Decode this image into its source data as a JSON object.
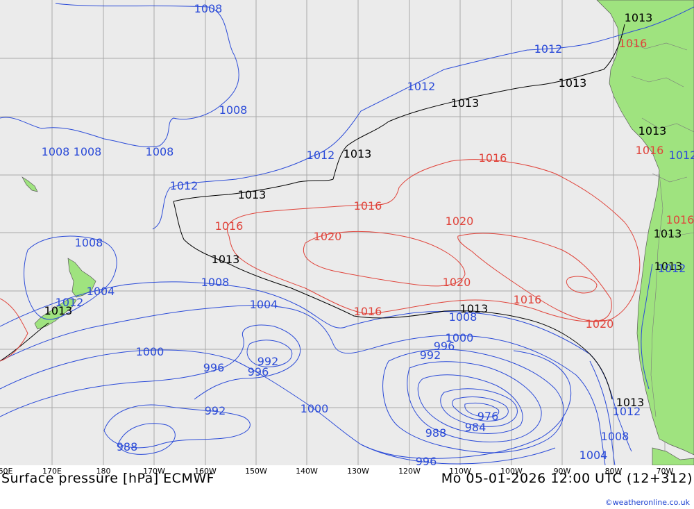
{
  "map": {
    "colors": {
      "ocean": "#ebebeb",
      "land": "#9fe37f",
      "grid": "#a8a8a8",
      "isobar_low": "#2b4bd8",
      "isobar_ref": "#000000",
      "isobar_high": "#e0433a",
      "border": "#7a7a7a"
    },
    "isobar_labels": [
      {
        "text": "1008",
        "color": "low"
      },
      {
        "text": "1008",
        "color": "low"
      },
      {
        "text": "1008",
        "color": "low"
      },
      {
        "text": "1008",
        "color": "low"
      },
      {
        "text": "1008",
        "color": "low"
      },
      {
        "text": "1012",
        "color": "low"
      },
      {
        "text": "1012",
        "color": "low"
      },
      {
        "text": "1012",
        "color": "low"
      },
      {
        "text": "1012",
        "color": "low"
      },
      {
        "text": "1013",
        "color": "ref"
      },
      {
        "text": "1013",
        "color": "ref"
      },
      {
        "text": "1013",
        "color": "ref"
      },
      {
        "text": "1013",
        "color": "ref"
      },
      {
        "text": "1013",
        "color": "ref"
      },
      {
        "text": "1016",
        "color": "high"
      },
      {
        "text": "1016",
        "color": "high"
      },
      {
        "text": "1016",
        "color": "high"
      },
      {
        "text": "1020",
        "color": "high"
      },
      {
        "text": "1020",
        "color": "high"
      },
      {
        "text": "1020",
        "color": "high"
      },
      {
        "text": "1016",
        "color": "high"
      },
      {
        "text": "1020",
        "color": "high"
      },
      {
        "text": "1016",
        "color": "high"
      },
      {
        "text": "1008",
        "color": "low"
      },
      {
        "text": "1004",
        "color": "low"
      },
      {
        "text": "1013",
        "color": "ref"
      },
      {
        "text": "1012",
        "color": "low"
      },
      {
        "text": "1008",
        "color": "low"
      },
      {
        "text": "1004",
        "color": "low"
      },
      {
        "text": "1000",
        "color": "low"
      },
      {
        "text": "996",
        "color": "low"
      },
      {
        "text": "996",
        "color": "low"
      },
      {
        "text": "992",
        "color": "low"
      },
      {
        "text": "992",
        "color": "low"
      },
      {
        "text": "988",
        "color": "low"
      },
      {
        "text": "1000",
        "color": "low"
      },
      {
        "text": "1013",
        "color": "ref"
      },
      {
        "text": "1008",
        "color": "low"
      },
      {
        "text": "1000",
        "color": "low"
      },
      {
        "text": "996",
        "color": "low"
      },
      {
        "text": "992",
        "color": "low"
      },
      {
        "text": "976",
        "color": "low"
      },
      {
        "text": "984",
        "color": "low"
      },
      {
        "text": "988",
        "color": "low"
      },
      {
        "text": "996",
        "color": "low"
      },
      {
        "text": "1013",
        "color": "ref"
      },
      {
        "text": "1012",
        "color": "low"
      },
      {
        "text": "1008",
        "color": "low"
      },
      {
        "text": "1004",
        "color": "low"
      },
      {
        "text": "1013",
        "color": "ref"
      },
      {
        "text": "1016",
        "color": "high"
      },
      {
        "text": "1013",
        "color": "ref"
      },
      {
        "text": "1016",
        "color": "high"
      },
      {
        "text": "1012",
        "color": "low"
      },
      {
        "text": "1013",
        "color": "ref"
      },
      {
        "text": "1016",
        "color": "high"
      },
      {
        "text": "1013",
        "color": "ref"
      },
      {
        "text": "1012",
        "color": "low"
      }
    ],
    "longitude_labels": [
      "60E",
      "170E",
      "180",
      "170W",
      "160W",
      "150W",
      "140W",
      "130W",
      "120W",
      "110W",
      "100W",
      "90W",
      "80W",
      "70W"
    ]
  },
  "footer": {
    "title": "Surface pressure [hPa] ECMWF",
    "date": "Mo 05-01-2026 12:00 UTC (12+312)",
    "credit": "©weatheronline.co.uk"
  }
}
